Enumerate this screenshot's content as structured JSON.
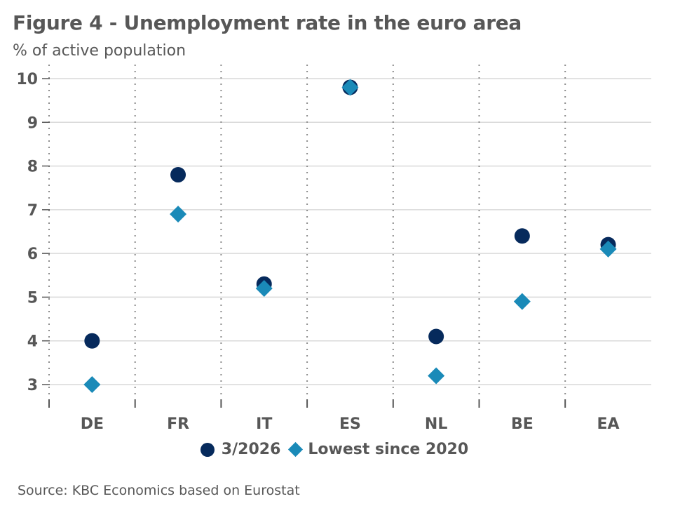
{
  "header": {
    "title": "Figure 4 - Unemployment rate in the euro area",
    "subtitle": "% of active population"
  },
  "footer": {
    "source": "Source: KBC Economics based on Eurostat"
  },
  "colors": {
    "series_current": "#062a5c",
    "series_lowest": "#1a8ab8",
    "grid": "#d9d9d9",
    "divider": "#8c8c8c",
    "text": "#575757"
  },
  "chart_data": {
    "type": "scatter",
    "title": "Figure 4 - Unemployment rate in the euro area",
    "subtitle": "% of active population",
    "xlabel": "",
    "ylabel": "% of active population",
    "categories": [
      "DE",
      "FR",
      "IT",
      "ES",
      "NL",
      "BE",
      "EA"
    ],
    "series": [
      {
        "name": "3/2026",
        "marker": "circle",
        "color": "#062a5c",
        "values": [
          4.0,
          7.8,
          5.3,
          9.8,
          4.1,
          6.4,
          6.2
        ]
      },
      {
        "name": "Lowest since 2020",
        "marker": "diamond",
        "color": "#1a8ab8",
        "values": [
          3.0,
          6.9,
          5.2,
          9.8,
          3.2,
          4.9,
          6.1
        ]
      }
    ],
    "ylim": [
      3,
      10
    ],
    "yticks": [
      3,
      4,
      5,
      6,
      7,
      8,
      9,
      10
    ],
    "grid": true,
    "legend_position": "bottom-center",
    "source": "Source: KBC Economics based on Eurostat"
  }
}
